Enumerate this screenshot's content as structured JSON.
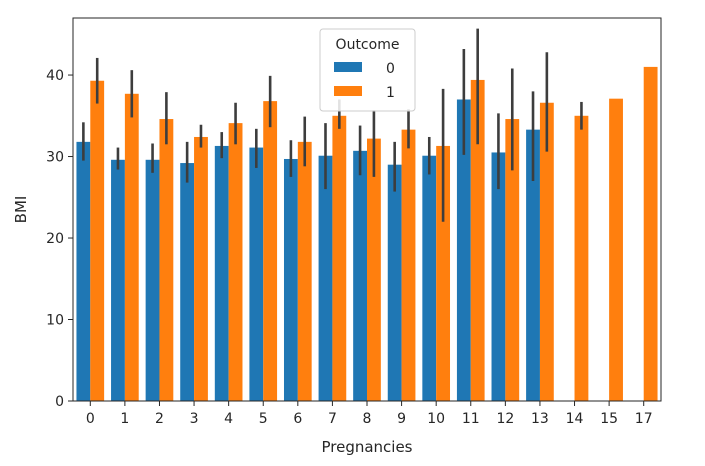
{
  "chart_data": {
    "type": "bar",
    "title": "",
    "xlabel": "Pregnancies",
    "ylabel": "BMI",
    "ylim": [
      0,
      47
    ],
    "yticks": [
      0,
      10,
      20,
      30,
      40
    ],
    "grid": false,
    "legend": {
      "title": "Outcome",
      "placement": "top-center"
    },
    "categories": [
      "0",
      "1",
      "2",
      "3",
      "4",
      "5",
      "6",
      "7",
      "8",
      "9",
      "10",
      "11",
      "12",
      "13",
      "14",
      "15",
      "17"
    ],
    "series": [
      {
        "name": "0",
        "color": "#1f77b4",
        "values": [
          31.8,
          29.6,
          29.6,
          29.2,
          31.3,
          31.1,
          29.7,
          30.1,
          30.7,
          29.0,
          30.1,
          37.0,
          30.5,
          33.3,
          null,
          null,
          null
        ],
        "err_low": [
          29.5,
          28.4,
          28.0,
          26.8,
          29.8,
          28.6,
          27.5,
          26.0,
          27.7,
          25.7,
          27.8,
          30.2,
          26.0,
          27.0,
          null,
          null,
          null
        ],
        "err_high": [
          34.2,
          31.1,
          31.6,
          31.8,
          33.0,
          33.4,
          32.0,
          34.1,
          33.8,
          31.8,
          32.4,
          43.2,
          35.3,
          38.0,
          null,
          null,
          null
        ]
      },
      {
        "name": "1",
        "color": "#ff7f0e",
        "values": [
          39.3,
          37.7,
          34.6,
          32.4,
          34.1,
          36.8,
          31.8,
          35.0,
          32.2,
          33.3,
          31.3,
          39.4,
          34.6,
          36.6,
          35.0,
          37.1,
          41.0
        ],
        "err_low": [
          36.5,
          34.8,
          31.5,
          31.1,
          31.5,
          33.6,
          28.8,
          33.4,
          27.5,
          31.0,
          22.0,
          31.5,
          28.3,
          30.6,
          33.3,
          null,
          null
        ],
        "err_high": [
          42.1,
          40.6,
          37.9,
          33.9,
          36.6,
          39.9,
          34.9,
          37.0,
          35.7,
          35.8,
          38.3,
          45.7,
          40.8,
          42.8,
          36.7,
          null,
          null
        ]
      }
    ]
  }
}
